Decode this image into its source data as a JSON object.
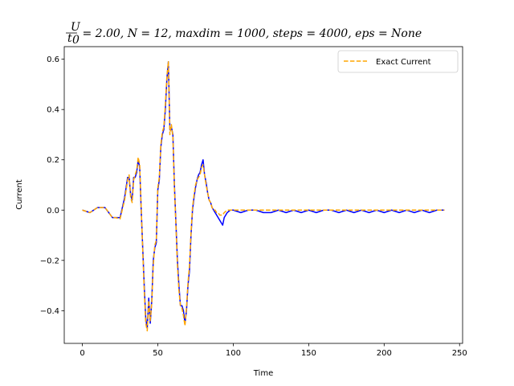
{
  "chart_data": {
    "type": "line",
    "title": {
      "frac_num": "U",
      "frac_den": "t",
      "frac_den_sub": "0",
      "rest": " = 2.00, N = 12, maxdim = 1000, steps = 4000, eps = None"
    },
    "xlabel": "Time",
    "ylabel": "Current",
    "xlim": [
      -12,
      252
    ],
    "ylim": [
      -0.53,
      0.65
    ],
    "xticks": [
      0,
      50,
      100,
      150,
      200,
      250
    ],
    "xtick_labels": [
      "0",
      "50",
      "100",
      "150",
      "200",
      "250"
    ],
    "yticks": [
      -0.4,
      -0.2,
      0.0,
      0.2,
      0.4,
      0.6
    ],
    "ytick_labels": [
      "−0.4",
      "−0.2",
      "0.0",
      "0.2",
      "0.4",
      "0.6"
    ],
    "legend_position": "upper right",
    "series": [
      {
        "label": "",
        "color": "#0000ff",
        "dash": "solid",
        "x": [
          0,
          5,
          10,
          15,
          20,
          22,
          25,
          28,
          30,
          31,
          32,
          33,
          34,
          35,
          36,
          37,
          38,
          39,
          40,
          41,
          42,
          43,
          44,
          45,
          46,
          47,
          48,
          49,
          50,
          51,
          52,
          53,
          54,
          55,
          56,
          57,
          58,
          59,
          60,
          61,
          62,
          63,
          64,
          65,
          66,
          67,
          68,
          69,
          70,
          71,
          72,
          73,
          74,
          75,
          76,
          77,
          78,
          79,
          80,
          81,
          82,
          83,
          84,
          85,
          86,
          87,
          88,
          89,
          90,
          91,
          92,
          93,
          94,
          96,
          98,
          100,
          105,
          110,
          115,
          120,
          125,
          130,
          135,
          140,
          145,
          150,
          155,
          160,
          165,
          170,
          175,
          180,
          185,
          190,
          195,
          200,
          205,
          210,
          215,
          220,
          225,
          230,
          235,
          240
        ],
        "y": [
          0.0,
          -0.01,
          0.01,
          0.01,
          -0.03,
          -0.03,
          -0.03,
          0.05,
          0.13,
          0.13,
          0.06,
          0.04,
          0.13,
          0.13,
          0.15,
          0.2,
          0.17,
          0.0,
          -0.15,
          -0.3,
          -0.43,
          -0.47,
          -0.35,
          -0.45,
          -0.36,
          -0.2,
          -0.15,
          -0.13,
          0.08,
          0.12,
          0.25,
          0.3,
          0.32,
          0.4,
          0.52,
          0.59,
          0.32,
          0.33,
          0.3,
          0.1,
          -0.05,
          -0.2,
          -0.3,
          -0.38,
          -0.38,
          -0.4,
          -0.45,
          -0.4,
          -0.3,
          -0.24,
          -0.1,
          0.0,
          0.05,
          0.09,
          0.12,
          0.14,
          0.15,
          0.18,
          0.2,
          0.14,
          0.11,
          0.07,
          0.04,
          0.03,
          0.01,
          0.0,
          -0.01,
          -0.02,
          -0.03,
          -0.04,
          -0.05,
          -0.06,
          -0.03,
          -0.01,
          0.0,
          0.0,
          -0.01,
          0.0,
          0.0,
          -0.01,
          -0.01,
          0.0,
          -0.01,
          0.0,
          -0.01,
          0.0,
          -0.01,
          0.0,
          0.0,
          -0.01,
          0.0,
          -0.01,
          0.0,
          -0.01,
          0.0,
          -0.01,
          0.0,
          -0.01,
          0.0,
          -0.01,
          0.0,
          -0.01,
          0.0,
          0.0
        ]
      },
      {
        "label": "Exact Current",
        "color": "#ffa500",
        "dash": "dashed",
        "x": [
          0,
          5,
          10,
          15,
          20,
          22,
          25,
          28,
          30,
          31,
          32,
          33,
          34,
          35,
          36,
          37,
          38,
          39,
          40,
          41,
          42,
          43,
          44,
          45,
          46,
          47,
          48,
          49,
          50,
          51,
          52,
          53,
          54,
          55,
          56,
          57,
          58,
          59,
          60,
          61,
          62,
          63,
          64,
          65,
          66,
          67,
          68,
          69,
          70,
          71,
          72,
          73,
          74,
          75,
          76,
          77,
          78,
          79,
          80,
          81,
          82,
          83,
          84,
          85,
          86,
          87,
          88,
          89,
          90,
          91,
          92,
          93,
          94,
          96,
          98,
          100,
          105,
          110,
          115,
          120,
          125,
          130,
          135,
          140,
          145,
          150,
          155,
          160,
          165,
          170,
          175,
          180,
          185,
          190,
          195,
          200,
          205,
          210,
          215,
          220,
          225,
          230,
          235,
          240
        ],
        "y": [
          0.0,
          -0.01,
          0.01,
          0.01,
          -0.03,
          -0.03,
          -0.035,
          0.04,
          0.12,
          0.14,
          0.05,
          0.03,
          0.12,
          0.14,
          0.16,
          0.21,
          0.18,
          0.01,
          -0.16,
          -0.32,
          -0.45,
          -0.48,
          -0.36,
          -0.44,
          -0.37,
          -0.22,
          -0.14,
          -0.12,
          0.09,
          0.13,
          0.26,
          0.31,
          0.33,
          0.42,
          0.53,
          0.59,
          0.3,
          0.34,
          0.29,
          0.09,
          -0.06,
          -0.22,
          -0.32,
          -0.38,
          -0.39,
          -0.42,
          -0.46,
          -0.39,
          -0.29,
          -0.22,
          -0.09,
          0.01,
          0.06,
          0.1,
          0.12,
          0.13,
          0.14,
          0.17,
          0.18,
          0.14,
          0.1,
          0.07,
          0.04,
          0.03,
          0.01,
          0.0,
          0.0,
          -0.01,
          -0.01,
          -0.02,
          -0.02,
          -0.02,
          -0.01,
          0.0,
          0.0,
          0.0,
          0.0,
          0.0,
          0.0,
          0.0,
          0.0,
          0.0,
          0.0,
          0.0,
          0.0,
          0.0,
          0.0,
          0.0,
          0.0,
          0.0,
          0.0,
          0.0,
          0.0,
          0.0,
          0.0,
          0.0,
          0.0,
          0.0,
          0.0,
          0.0,
          0.0,
          0.0,
          0.0,
          0.0
        ]
      }
    ],
    "grid": false
  }
}
